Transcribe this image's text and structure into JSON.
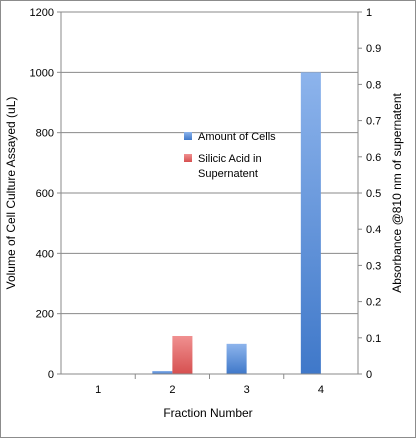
{
  "chart_data": {
    "type": "bar",
    "xlabel": "Fraction Number",
    "ylabel": "Volume of Cell Culture Assayed (uL)",
    "y2label": "Absorbance @810 nm of supernatent",
    "categories": [
      "1",
      "2",
      "3",
      "4"
    ],
    "ylim": [
      0,
      1200
    ],
    "yticks": [
      0,
      200,
      400,
      600,
      800,
      1000,
      1200
    ],
    "y2lim": [
      0,
      1
    ],
    "y2ticks": [
      0,
      0.1,
      0.2,
      0.3,
      0.4,
      0.5,
      0.6,
      0.7,
      0.8,
      0.9,
      1
    ],
    "grid": true,
    "legend_position": "center",
    "series": [
      {
        "name": "Amount of Cells",
        "axis": "left",
        "color": "#4f86d6",
        "values": [
          0,
          10,
          100,
          1000
        ]
      },
      {
        "name": "Silicic Acid in Supernatent",
        "axis": "right",
        "color": "#e06666",
        "values": [
          0,
          0.105,
          0,
          0
        ]
      }
    ],
    "legend": [
      {
        "lines": [
          "Amount of Cells"
        ]
      },
      {
        "lines": [
          "Silicic Acid in",
          "Supernatent"
        ]
      }
    ]
  }
}
